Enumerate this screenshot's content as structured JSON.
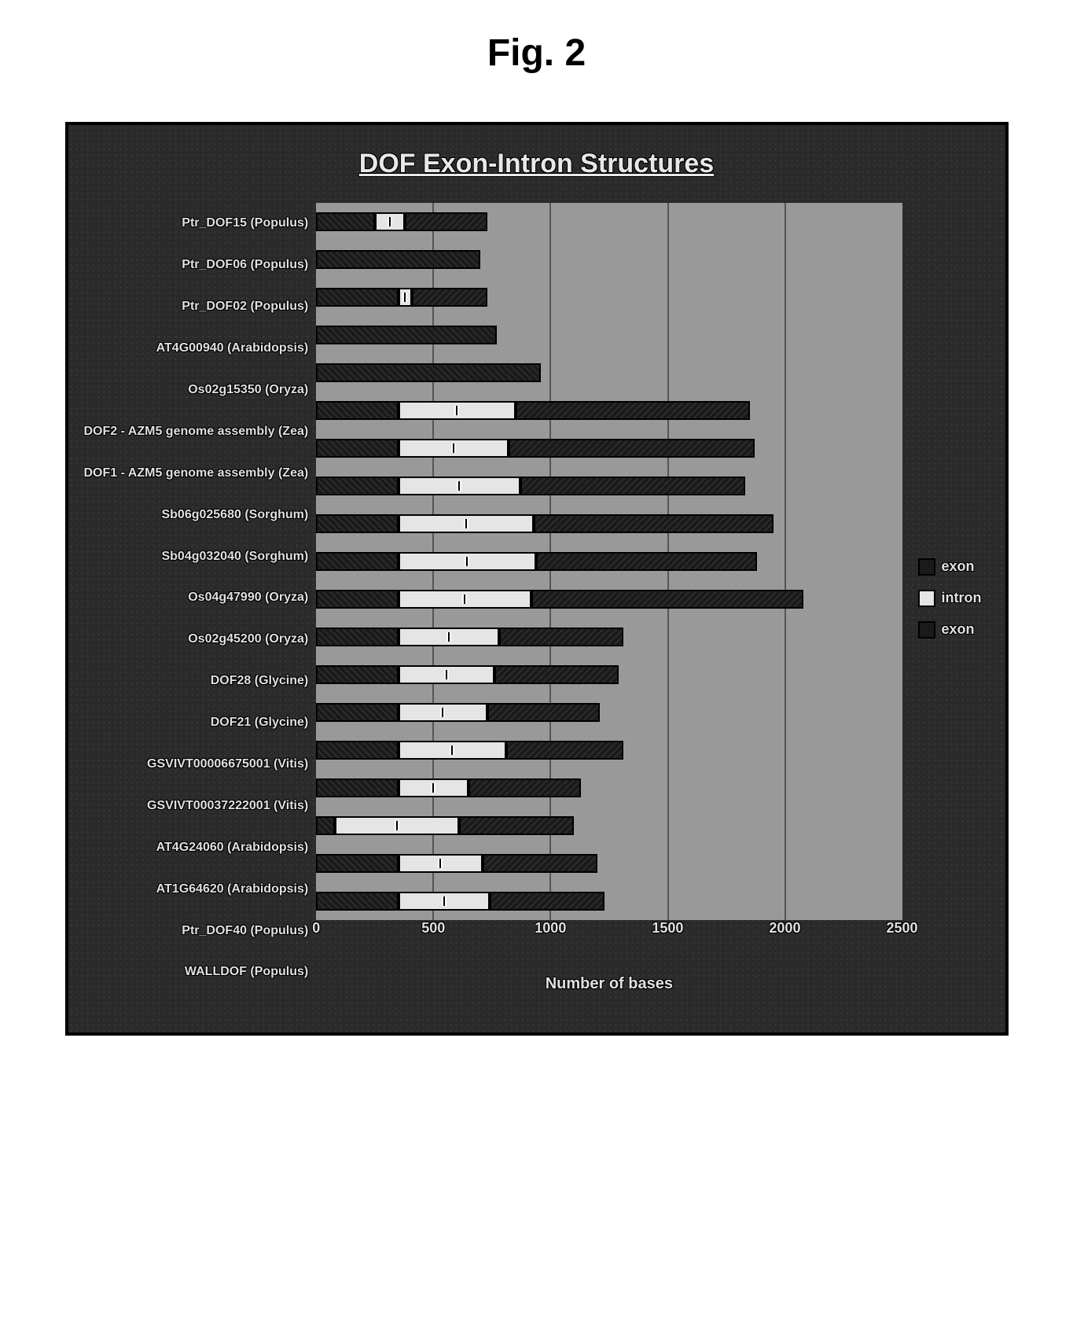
{
  "figure_label": "Fig. 2",
  "chart": {
    "type": "stacked-bar-horizontal",
    "title": "DOF Exon-Intron Structures",
    "xlabel": "Number of bases",
    "xlim": [
      0,
      2500
    ],
    "xtick_step": 500,
    "xticks": [
      0,
      500,
      1000,
      1500,
      2000,
      2500
    ],
    "background_color": "#2a2a2a",
    "plot_bg_color": "#999999",
    "grid_color": "#555555",
    "text_color": "#e0e0e0",
    "title_fontsize": 34,
    "label_fontsize": 16,
    "tick_fontsize": 18,
    "series": [
      {
        "name": "Ptr_DOF15 (Populus)",
        "segments": [
          {
            "type": "exon1",
            "len": 250
          },
          {
            "type": "intron",
            "len": 130
          },
          {
            "type": "exon2",
            "len": 350
          }
        ]
      },
      {
        "name": "Ptr_DOF06 (Populus)",
        "segments": [
          {
            "type": "exon1",
            "len": 700
          }
        ]
      },
      {
        "name": "Ptr_DOF02 (Populus)",
        "segments": [
          {
            "type": "exon1",
            "len": 350
          },
          {
            "type": "intron",
            "len": 60
          },
          {
            "type": "exon2",
            "len": 320
          }
        ]
      },
      {
        "name": "AT4G00940 (Arabidopsis)",
        "segments": [
          {
            "type": "exon1",
            "len": 770
          }
        ]
      },
      {
        "name": "Os02g15350 (Oryza)",
        "segments": [
          {
            "type": "exon1",
            "len": 960
          }
        ]
      },
      {
        "name": "DOF2 - AZM5 genome assembly (Zea)",
        "segments": [
          {
            "type": "exon1",
            "len": 350
          },
          {
            "type": "intron",
            "len": 500
          },
          {
            "type": "exon2",
            "len": 1000
          }
        ]
      },
      {
        "name": "DOF1 - AZM5 genome assembly (Zea)",
        "segments": [
          {
            "type": "exon1",
            "len": 350
          },
          {
            "type": "intron",
            "len": 470
          },
          {
            "type": "exon2",
            "len": 1050
          }
        ]
      },
      {
        "name": "Sb06g025680 (Sorghum)",
        "segments": [
          {
            "type": "exon1",
            "len": 350
          },
          {
            "type": "intron",
            "len": 520
          },
          {
            "type": "exon2",
            "len": 960
          }
        ]
      },
      {
        "name": "Sb04g032040 (Sorghum)",
        "segments": [
          {
            "type": "exon1",
            "len": 350
          },
          {
            "type": "intron",
            "len": 580
          },
          {
            "type": "exon2",
            "len": 1020
          }
        ]
      },
      {
        "name": "Os04g47990 (Oryza)",
        "segments": [
          {
            "type": "exon1",
            "len": 350
          },
          {
            "type": "intron",
            "len": 590
          },
          {
            "type": "exon2",
            "len": 940
          }
        ]
      },
      {
        "name": "Os02g45200 (Oryza)",
        "segments": [
          {
            "type": "exon1",
            "len": 350
          },
          {
            "type": "intron",
            "len": 570
          },
          {
            "type": "exon2",
            "len": 1160
          }
        ]
      },
      {
        "name": "DOF28 (Glycine)",
        "segments": [
          {
            "type": "exon1",
            "len": 350
          },
          {
            "type": "intron",
            "len": 430
          },
          {
            "type": "exon2",
            "len": 530
          }
        ]
      },
      {
        "name": "DOF21 (Glycine)",
        "segments": [
          {
            "type": "exon1",
            "len": 350
          },
          {
            "type": "intron",
            "len": 410
          },
          {
            "type": "exon2",
            "len": 530
          }
        ]
      },
      {
        "name": "GSVIVT00006675001 (Vitis)",
        "segments": [
          {
            "type": "exon1",
            "len": 350
          },
          {
            "type": "intron",
            "len": 380
          },
          {
            "type": "exon2",
            "len": 480
          }
        ]
      },
      {
        "name": "GSVIVT00037222001 (Vitis)",
        "segments": [
          {
            "type": "exon1",
            "len": 350
          },
          {
            "type": "intron",
            "len": 460
          },
          {
            "type": "exon2",
            "len": 500
          }
        ]
      },
      {
        "name": "AT4G24060 (Arabidopsis)",
        "segments": [
          {
            "type": "exon1",
            "len": 350
          },
          {
            "type": "intron",
            "len": 300
          },
          {
            "type": "exon2",
            "len": 480
          }
        ]
      },
      {
        "name": "AT1G64620 (Arabidopsis)",
        "segments": [
          {
            "type": "exon1",
            "len": 80
          },
          {
            "type": "intron",
            "len": 530
          },
          {
            "type": "exon2",
            "len": 490
          }
        ]
      },
      {
        "name": "Ptr_DOF40 (Populus)",
        "segments": [
          {
            "type": "exon1",
            "len": 350
          },
          {
            "type": "intron",
            "len": 360
          },
          {
            "type": "exon2",
            "len": 490
          }
        ]
      },
      {
        "name": "WALLDOF (Populus)",
        "segments": [
          {
            "type": "exon1",
            "len": 350
          },
          {
            "type": "intron",
            "len": 390
          },
          {
            "type": "exon2",
            "len": 490
          }
        ]
      }
    ],
    "segment_colors": {
      "exon1": "#1a1a1a",
      "intron": "#e5e5e5",
      "exon2": "#1a1a1a"
    },
    "legend": [
      {
        "label": "exon",
        "color": "#1a1a1a"
      },
      {
        "label": "intron",
        "color": "#e5e5e5"
      },
      {
        "label": "exon",
        "color": "#1a1a1a"
      }
    ]
  }
}
